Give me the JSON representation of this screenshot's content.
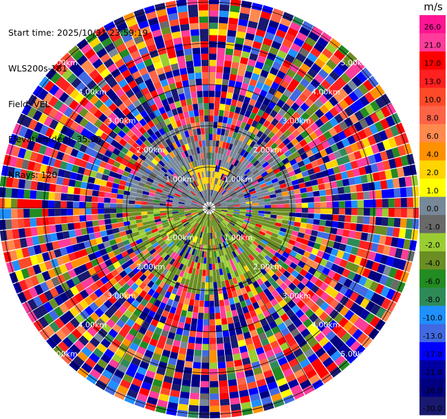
{
  "info": {
    "start_time": "Start time: 2025/10/31 23:59:19",
    "instrument": "WLS200s-181",
    "field": "Field: VEL",
    "elevation": "Elevation(deg): 35.00",
    "nrays": "NRays: 120"
  },
  "chart_data": {
    "type": "heatmap",
    "projection": "polar-ppi",
    "field": "VEL",
    "unit": "m/s",
    "range_rings_km": [
      1,
      2,
      3,
      4,
      5
    ],
    "ring_label_texts": [
      "1.00km",
      "2.00km",
      "3.00km",
      "4.00km",
      "5.00km"
    ],
    "ring_label_azimuths_deg": [
      45,
      135,
      225,
      315
    ],
    "max_range_km": 5.1,
    "n_rays": 120,
    "grid_lines_azimuth_deg": [
      0,
      30,
      60,
      90,
      120,
      150,
      180,
      210,
      240,
      270,
      300,
      330
    ],
    "data_regions": [
      {
        "azimuth_from": 0,
        "azimuth_to": 360,
        "range_km": [
          0,
          0.15
        ],
        "note": "no data"
      },
      {
        "azimuth_from": 270,
        "azimuth_to": 90,
        "range_km": [
          0.15,
          2.0
        ],
        "dominant_values": [
          -0.5,
          0.5,
          1.5
        ]
      },
      {
        "azimuth_from": 330,
        "azimuth_to": 30,
        "range_km": [
          0.3,
          1.0
        ],
        "dominant_values": [
          2.5,
          3.5
        ]
      },
      {
        "azimuth_from": 90,
        "azimuth_to": 270,
        "range_km": [
          0.15,
          2.0
        ],
        "dominant_values": [
          -1.5,
          -2.5,
          -3.5
        ]
      },
      {
        "azimuth_from": 0,
        "azimuth_to": 360,
        "range_km": [
          2.0,
          5.1
        ],
        "dominant_values": "noise (full color range)"
      }
    ],
    "colorbar": {
      "title": "m/s",
      "ticks": [
        "26.0",
        "21.0",
        "17.0",
        "13.0",
        "10.0",
        "8.0",
        "6.0",
        "4.0",
        "2.0",
        "1.0",
        "0.0",
        "-1.0",
        "-2.0",
        "-4.0",
        "-6.0",
        "-8.0",
        "-10.0",
        "-13.0",
        "-17.0",
        "-21.0",
        "-26.0",
        "-30.0"
      ],
      "colors": [
        "#ff1493",
        "#ff3c9b",
        "#ff0000",
        "#ff2020",
        "#ff4a2a",
        "#ff6347",
        "#ff8a4d",
        "#ff9100",
        "#ffd400",
        "#ffff00",
        "#778899",
        "#696969",
        "#9acd32",
        "#6b8e23",
        "#228b22",
        "#2e8b57",
        "#1e90ff",
        "#4169e1",
        "#0000ff",
        "#0000a0",
        "#000080",
        "#191970"
      ]
    }
  }
}
